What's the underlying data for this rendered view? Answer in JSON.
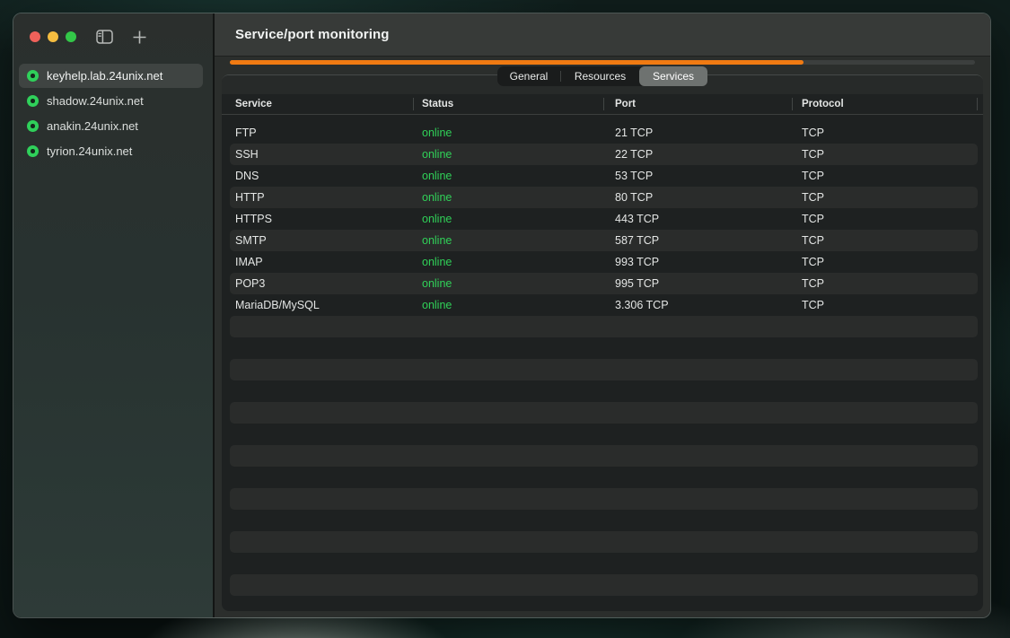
{
  "window": {
    "traffic_lights": [
      {
        "name": "close",
        "color": "#f0615a"
      },
      {
        "name": "minimize",
        "color": "#f5bd40"
      },
      {
        "name": "zoom",
        "color": "#33c748"
      }
    ],
    "sidebar": {
      "icons": {
        "toggle": "sidebar-toggle-icon",
        "add": "plus-icon",
        "server_status": "status-ring-icon"
      },
      "servers": [
        {
          "label": "keyhelp.lab.24unix.net",
          "status": "online",
          "selected": true
        },
        {
          "label": "shadow.24unix.net",
          "status": "online",
          "selected": false
        },
        {
          "label": "anakin.24unix.net",
          "status": "online",
          "selected": false
        },
        {
          "label": "tyrion.24unix.net",
          "status": "online",
          "selected": false
        }
      ]
    },
    "main": {
      "title": "Service/port monitoring",
      "progress": {
        "percent": 77,
        "color": "#f07a12"
      },
      "tabs": [
        {
          "label": "General",
          "selected": false
        },
        {
          "label": "Resources",
          "selected": false
        },
        {
          "label": "Services",
          "selected": true
        }
      ],
      "table": {
        "columns": [
          "Service",
          "Status",
          "Port",
          "Protocol"
        ],
        "rows": [
          {
            "service": "FTP",
            "status": "online",
            "port": "21 TCP",
            "protocol": "TCP"
          },
          {
            "service": "SSH",
            "status": "online",
            "port": "22 TCP",
            "protocol": "TCP"
          },
          {
            "service": "DNS",
            "status": "online",
            "port": "53 TCP",
            "protocol": "TCP"
          },
          {
            "service": "HTTP",
            "status": "online",
            "port": "80 TCP",
            "protocol": "TCP"
          },
          {
            "service": "HTTPS",
            "status": "online",
            "port": "443 TCP",
            "protocol": "TCP"
          },
          {
            "service": "SMTP",
            "status": "online",
            "port": "587 TCP",
            "protocol": "TCP"
          },
          {
            "service": "IMAP",
            "status": "online",
            "port": "993 TCP",
            "protocol": "TCP"
          },
          {
            "service": "POP3",
            "status": "online",
            "port": "995 TCP",
            "protocol": "TCP"
          },
          {
            "service": "MariaDB/MySQL",
            "status": "online",
            "port": "3.306 TCP",
            "protocol": "TCP"
          }
        ],
        "empty_row_count": 14
      }
    },
    "colors": {
      "online_green": "#30d158",
      "accent_orange": "#f07a12",
      "status_dot_green": "#2fd05a"
    }
  }
}
